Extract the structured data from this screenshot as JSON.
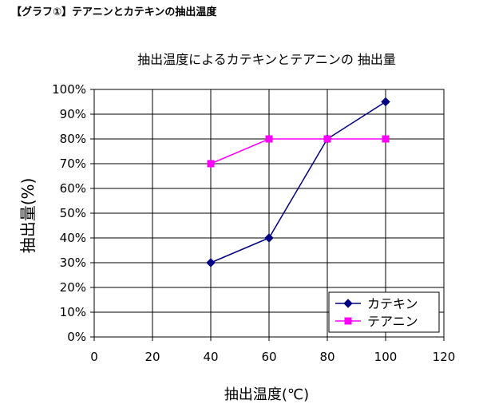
{
  "header": "【グラフ①】テアニンとカテキンの抽出温度",
  "chart_data": {
    "type": "line",
    "title": "抽出温度によるカテキンとテアニンの 抽出量",
    "xlabel": "抽出温度(℃)",
    "ylabel": "抽出量(%)",
    "xlim": [
      0,
      120
    ],
    "ylim": [
      0,
      100
    ],
    "xticks": [
      "0",
      "20",
      "40",
      "60",
      "80",
      "100",
      "120"
    ],
    "yticks": [
      "0%",
      "10%",
      "20%",
      "30%",
      "40%",
      "50%",
      "60%",
      "70%",
      "80%",
      "90%",
      "100%"
    ],
    "grid": true,
    "legend_position": "bottom-right",
    "series": [
      {
        "name": "カテキン",
        "x": [
          40,
          60,
          80,
          100
        ],
        "y": [
          30,
          40,
          80,
          95
        ],
        "color": "#000080",
        "marker": "diamond"
      },
      {
        "name": "テアニン",
        "x": [
          40,
          60,
          80,
          100
        ],
        "y": [
          70,
          80,
          80,
          80
        ],
        "color": "#ff00ff",
        "marker": "square"
      }
    ]
  }
}
